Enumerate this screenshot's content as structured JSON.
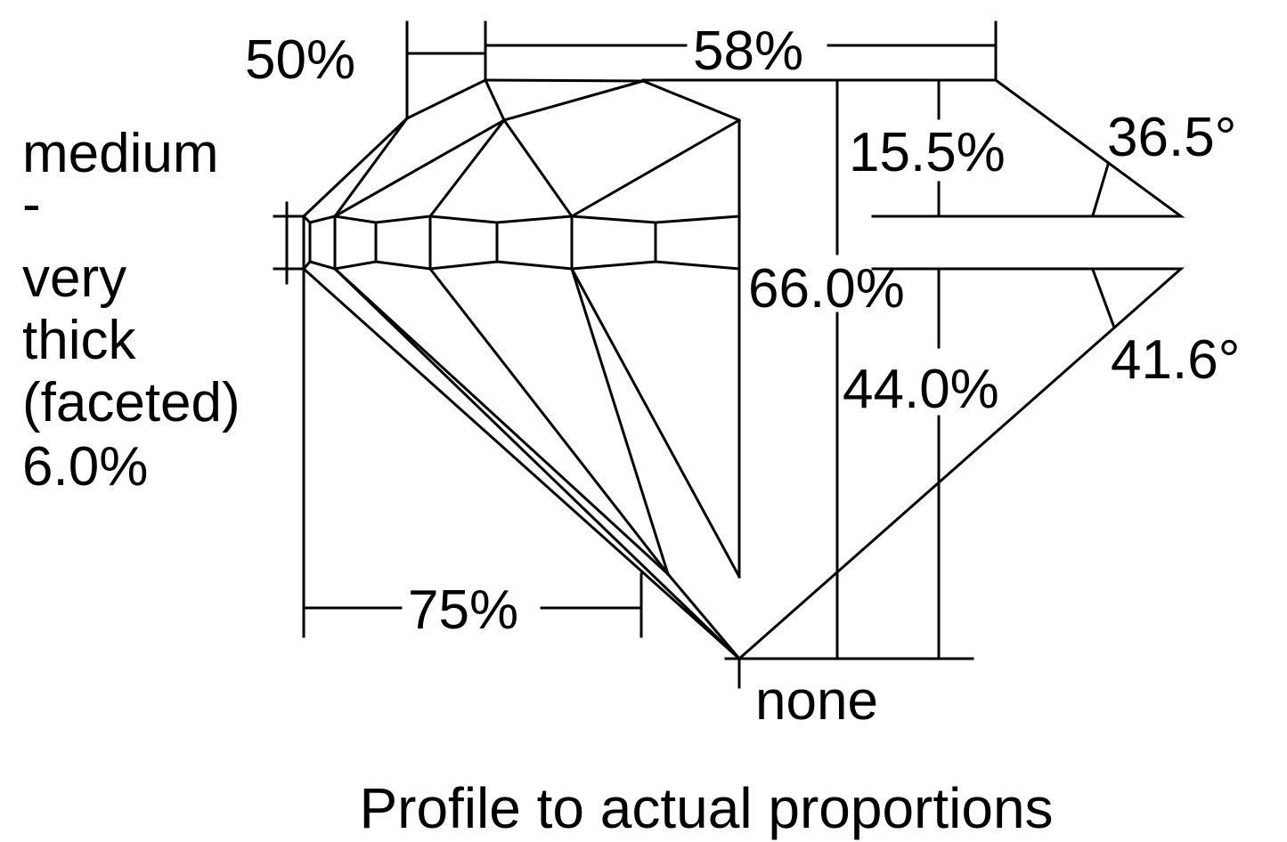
{
  "diagram": {
    "title": "Profile to actual proportions",
    "labels": {
      "lower_half_length": "50%",
      "table": "58%",
      "crown_height": "15.5%",
      "crown_angle": "36.5°",
      "total_depth": "66.0%",
      "pavilion_angle": "41.6°",
      "pavilion_depth": "44.0%",
      "star_length": "75%",
      "culet": "none"
    },
    "girdle": [
      "medium",
      "-",
      "very",
      "thick",
      "(faceted)",
      "6.0%"
    ],
    "line_color": "#000000",
    "background": "#ffffff"
  }
}
